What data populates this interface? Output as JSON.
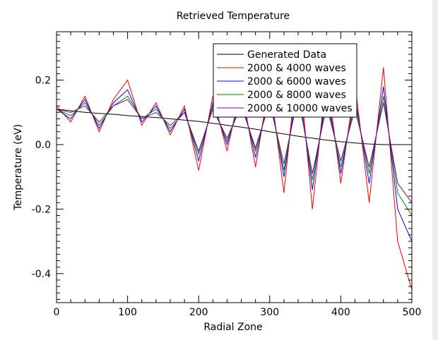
{
  "chart_data": {
    "type": "line",
    "title": "Retrieved Temperature",
    "xlabel": "Radial Zone",
    "ylabel": "Temperature (eV)",
    "xlim": [
      0,
      500
    ],
    "ylim": [
      -0.49,
      0.35
    ],
    "xticks": [
      0,
      100,
      200,
      300,
      400,
      500
    ],
    "xtick_labels": [
      "0",
      "100",
      "200",
      "300",
      "400",
      "500"
    ],
    "yticks": [
      0.2,
      0.0,
      -0.2,
      -0.4
    ],
    "ytick_labels": [
      "0.2",
      "0.0",
      "-0.2",
      "-0.4"
    ],
    "grid": false,
    "legend_position": "top-right",
    "x": [
      0,
      20,
      40,
      60,
      80,
      100,
      120,
      140,
      160,
      180,
      200,
      220,
      240,
      260,
      280,
      300,
      320,
      340,
      360,
      380,
      400,
      420,
      440,
      460,
      480,
      500
    ],
    "series": [
      {
        "name": "Generated Data",
        "color": "#000000",
        "values": [
          0.11,
          0.105,
          0.1,
          0.097,
          0.094,
          0.09,
          0.087,
          0.084,
          0.08,
          0.076,
          0.072,
          0.066,
          0.06,
          0.054,
          0.048,
          0.04,
          0.033,
          0.026,
          0.02,
          0.014,
          0.009,
          0.005,
          0.002,
          0.0,
          0.0,
          0.0
        ]
      },
      {
        "name": "2000 & 4000 waves",
        "color": "#ff0000",
        "values": [
          0.12,
          0.07,
          0.15,
          0.04,
          0.14,
          0.2,
          0.06,
          0.13,
          0.03,
          0.12,
          -0.08,
          0.15,
          -0.02,
          0.18,
          -0.07,
          0.2,
          -0.15,
          0.28,
          -0.2,
          0.22,
          -0.12,
          0.19,
          -0.18,
          0.24,
          -0.3,
          -0.45
        ]
      },
      {
        "name": "2000 & 6000 waves",
        "color": "#0000ff",
        "values": [
          0.11,
          0.08,
          0.14,
          0.05,
          0.13,
          0.17,
          0.07,
          0.12,
          0.04,
          0.11,
          -0.05,
          0.13,
          0.0,
          0.15,
          -0.04,
          0.16,
          -0.1,
          0.2,
          -0.14,
          0.17,
          -0.09,
          0.15,
          -0.12,
          0.18,
          -0.2,
          -0.3
        ]
      },
      {
        "name": "2000 & 8000 waves",
        "color": "#008000",
        "values": [
          0.11,
          0.09,
          0.13,
          0.06,
          0.12,
          0.15,
          0.08,
          0.11,
          0.05,
          0.1,
          -0.03,
          0.12,
          0.01,
          0.13,
          -0.02,
          0.14,
          -0.08,
          0.17,
          -0.11,
          0.14,
          -0.07,
          0.13,
          -0.09,
          0.15,
          -0.15,
          -0.22
        ]
      },
      {
        "name": "2000 & 10000 waves",
        "color": "#800080",
        "values": [
          0.11,
          0.1,
          0.12,
          0.07,
          0.12,
          0.14,
          0.08,
          0.1,
          0.06,
          0.1,
          -0.02,
          0.11,
          0.02,
          0.12,
          -0.01,
          0.13,
          -0.06,
          0.15,
          -0.09,
          0.12,
          -0.05,
          0.11,
          -0.07,
          0.13,
          -0.12,
          -0.18
        ]
      }
    ]
  }
}
